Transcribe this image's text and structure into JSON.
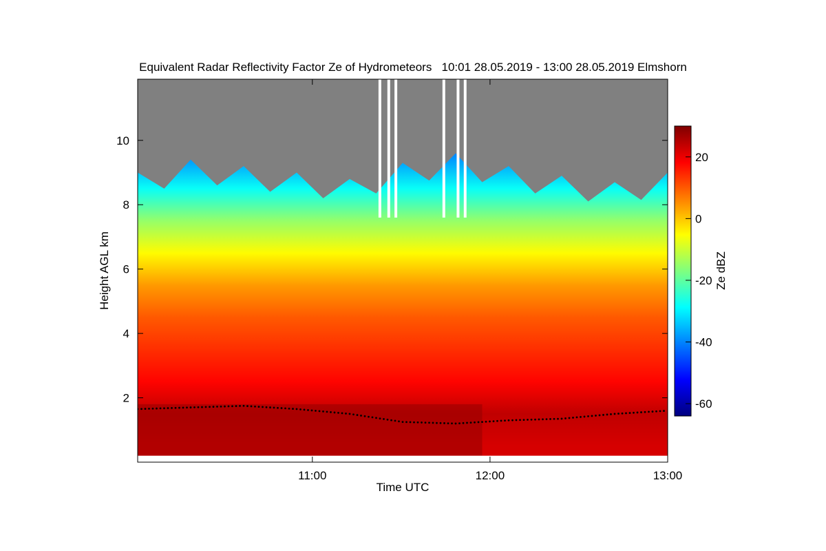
{
  "chart_data": {
    "type": "heatmap",
    "title": "Equivalent Radar Reflectivity Factor Ze of Hydrometeors   10:01 28.05.2019 - 13:00 28.05.2019 Elmshorn",
    "xlabel": "Time UTC",
    "ylabel": "Height AGL km",
    "x_ticks": [
      "11:00",
      "12:00",
      "13:00"
    ],
    "x_tick_hours": [
      11.0,
      12.0,
      13.0
    ],
    "xlim_hours": [
      10.0167,
      13.0
    ],
    "y_ticks": [
      2,
      4,
      6,
      8,
      10
    ],
    "ylim_km": [
      0,
      11.9
    ],
    "colorbar": {
      "label": "Ze dBZ",
      "ticks": [
        -60,
        -40,
        -20,
        0,
        20
      ],
      "range": [
        -64,
        30
      ],
      "colormap": [
        "#00007f",
        "#0000ff",
        "#007fff",
        "#00ffff",
        "#7fff7f",
        "#ffff00",
        "#ff7f00",
        "#ff0000",
        "#7f0000"
      ]
    },
    "background_no_signal_color": "#808080",
    "cloud_top_km": [
      9.0,
      9.4,
      9.2,
      9.0,
      8.8,
      9.3,
      9.6,
      9.2,
      8.9,
      8.7,
      9.0
    ],
    "profile_dbz": [
      {
        "height_km": 0.5,
        "dbz": 22
      },
      {
        "height_km": 1.5,
        "dbz": 24
      },
      {
        "height_km": 2.5,
        "dbz": 18
      },
      {
        "height_km": 3.5,
        "dbz": 14
      },
      {
        "height_km": 4.5,
        "dbz": 10
      },
      {
        "height_km": 5.5,
        "dbz": 4
      },
      {
        "height_km": 6.5,
        "dbz": -5
      },
      {
        "height_km": 7.5,
        "dbz": -15
      },
      {
        "height_km": 8.5,
        "dbz": -28
      }
    ],
    "melting_layer_km": [
      1.65,
      1.7,
      1.75,
      1.65,
      1.5,
      1.25,
      1.2,
      1.3,
      1.35,
      1.5,
      1.6
    ],
    "gaps_hours": [
      11.38,
      11.43,
      11.47,
      11.74,
      11.82,
      11.86
    ]
  }
}
